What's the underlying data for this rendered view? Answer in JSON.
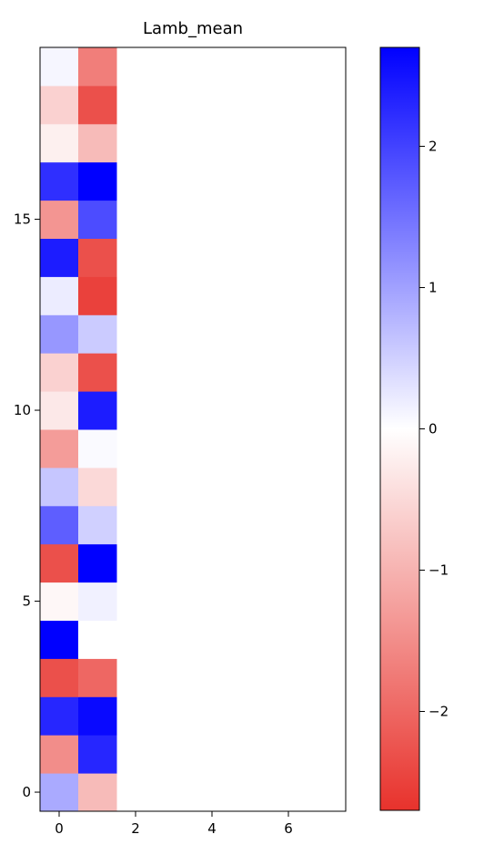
{
  "chart_data": {
    "type": "heatmap",
    "title": "Lamb_mean",
    "xlabel": "",
    "ylabel": "",
    "origin": "lower",
    "ncols": 8,
    "nrows": 20,
    "xlim": [
      -0.5,
      7.5
    ],
    "ylim": [
      -0.5,
      19.5
    ],
    "xticks": [
      0,
      2,
      4,
      6
    ],
    "yticks": [
      0,
      5,
      10,
      15
    ],
    "colormap": "bwr_r",
    "vmin": -2.7,
    "vmax": 2.7,
    "colorbar_ticks": [
      2,
      1,
      0,
      -1,
      -2
    ],
    "colorbar_tick_labels": [
      "2",
      "1",
      "0",
      "−1",
      "−2"
    ],
    "filled_columns": [
      0,
      1
    ],
    "values": [
      [
        0.9,
        -0.9
      ],
      [
        -1.5,
        2.3
      ],
      [
        2.3,
        2.6
      ],
      [
        -2.3,
        -2.0
      ],
      [
        2.7,
        0.0
      ],
      [
        -0.1,
        0.15
      ],
      [
        -2.3,
        2.7
      ],
      [
        1.7,
        0.5
      ],
      [
        0.6,
        -0.5
      ],
      [
        -1.3,
        0.05
      ],
      [
        -0.3,
        2.4
      ],
      [
        -0.6,
        -2.3
      ],
      [
        1.1,
        0.55
      ],
      [
        0.2,
        -2.5
      ],
      [
        2.4,
        -2.3
      ],
      [
        -1.4,
        1.9
      ],
      [
        2.2,
        2.7
      ],
      [
        -0.2,
        -0.9
      ],
      [
        -0.6,
        -2.3
      ],
      [
        0.1,
        -1.7
      ]
    ]
  }
}
